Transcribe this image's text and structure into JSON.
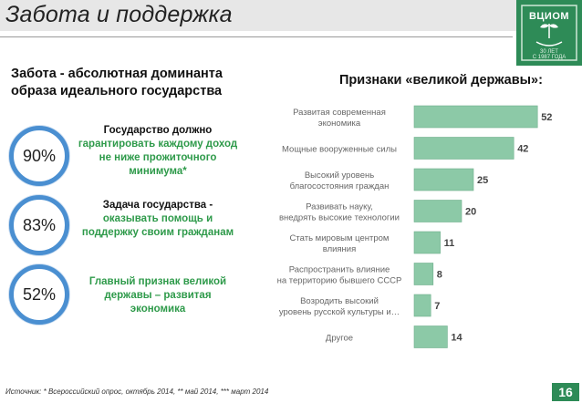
{
  "header": {
    "title": "Забота и поддержка",
    "logo_text": "ВЦИОМ",
    "logo_years": "30 ЛЕТ",
    "logo_since": "С 1987 ГОДА"
  },
  "left": {
    "heading": "Забота - абсолютная доминанта образа идеального государства",
    "items": [
      {
        "pct": "90%",
        "line1": "Государство должно",
        "line2": "гарантировать каждому доход не ниже прожиточного минимума*"
      },
      {
        "pct": "83%",
        "line1": "Задача государства -",
        "line2": "оказывать помощь и поддержку своим гражданам"
      },
      {
        "pct": "52%",
        "line1": "",
        "line2": "Главный признак великой державы – развитая экономика"
      }
    ]
  },
  "chart_data": {
    "type": "bar",
    "title": "Признаки «великой державы»:",
    "orientation": "horizontal",
    "categories": [
      "Развитая современная экономика",
      "Мощные вооруженные силы",
      "Высокий уровень благосостояния граждан",
      "Развивать науку, внедрять высокие технологии",
      "Стать мировым центром влияния",
      "Распространить влияние на территорию бывшего СССР",
      "Возродить высокий уровень русской культуры и…",
      "Другое"
    ],
    "values": [
      52,
      42,
      25,
      20,
      11,
      8,
      7,
      14
    ],
    "xlim": [
      0,
      60
    ],
    "grid": false,
    "bar_color": "#8cc9a7"
  },
  "footer": {
    "source": "Источник: * Всероссийский опрос, октябрь 2014, ** май 2014, *** март 2014",
    "page": "16"
  }
}
